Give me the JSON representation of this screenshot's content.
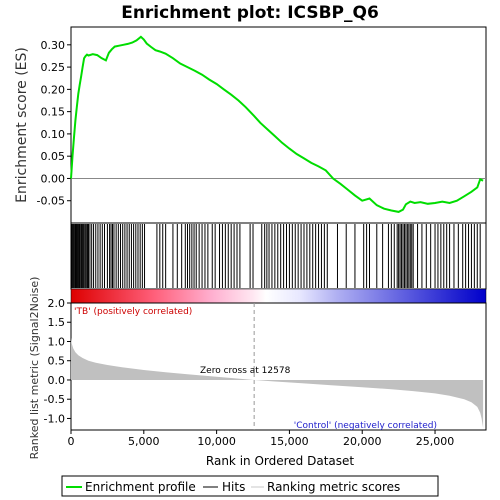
{
  "chart_data": [
    {
      "type": "line",
      "title": "Enrichment plot: ICSBP_Q6",
      "ylabel": "Enrichment score (ES)",
      "xlim": [
        0,
        28500
      ],
      "ylim": [
        -0.1,
        0.34
      ],
      "yticks": [
        "0.30",
        "0.25",
        "0.20",
        "0.15",
        "0.10",
        "0.05",
        "0.00",
        "-0.05"
      ],
      "ytick_values": [
        0.3,
        0.25,
        0.2,
        0.15,
        0.1,
        0.05,
        0.0,
        -0.05
      ],
      "series": [
        {
          "name": "Enrichment profile",
          "color": "#00dd00",
          "x": [
            0,
            100,
            200,
            300,
            400,
            500,
            600,
            700,
            800,
            900,
            1000,
            1100,
            1200,
            1500,
            1800,
            2100,
            2400,
            2600,
            2800,
            3000,
            3300,
            3600,
            3900,
            4200,
            4500,
            4800,
            5000,
            5200,
            5500,
            5800,
            6100,
            6500,
            7000,
            7500,
            8000,
            8500,
            9000,
            9500,
            10000,
            10500,
            11000,
            11500,
            12000,
            12578,
            13000,
            13500,
            14000,
            14500,
            15000,
            15500,
            16000,
            16500,
            17000,
            17500,
            18000,
            18500,
            19000,
            19500,
            20000,
            20500,
            21000,
            21500,
            22000,
            22500,
            22800,
            23000,
            23300,
            23600,
            24000,
            24500,
            25000,
            25500,
            26000,
            26500,
            27000,
            27500,
            27900,
            28100,
            28300
          ],
          "y": [
            0.0,
            0.05,
            0.09,
            0.13,
            0.16,
            0.19,
            0.21,
            0.23,
            0.25,
            0.27,
            0.275,
            0.278,
            0.276,
            0.279,
            0.277,
            0.27,
            0.265,
            0.282,
            0.29,
            0.296,
            0.298,
            0.3,
            0.302,
            0.305,
            0.31,
            0.318,
            0.312,
            0.303,
            0.295,
            0.288,
            0.285,
            0.28,
            0.27,
            0.258,
            0.25,
            0.242,
            0.233,
            0.222,
            0.212,
            0.2,
            0.188,
            0.175,
            0.16,
            0.14,
            0.125,
            0.11,
            0.095,
            0.08,
            0.067,
            0.055,
            0.045,
            0.035,
            0.027,
            0.018,
            0.0,
            -0.012,
            -0.025,
            -0.038,
            -0.05,
            -0.045,
            -0.06,
            -0.068,
            -0.072,
            -0.075,
            -0.07,
            -0.058,
            -0.052,
            -0.055,
            -0.053,
            -0.057,
            -0.055,
            -0.052,
            -0.055,
            -0.05,
            -0.04,
            -0.03,
            -0.02,
            -0.002,
            -0.005
          ]
        }
      ]
    },
    {
      "type": "area",
      "ylabel": "Ranked list metric (Signal2Noise)",
      "xlabel": "Rank in Ordered Dataset",
      "xlim": [
        0,
        28500
      ],
      "ylim": [
        -1.3,
        2.0
      ],
      "yticks": [
        "2.0",
        "1.5",
        "1.0",
        "0.5",
        "0.0",
        "-0.5",
        "-1.0"
      ],
      "ytick_values": [
        2.0,
        1.5,
        1.0,
        0.5,
        0.0,
        -0.5,
        -1.0
      ],
      "xticks": [
        "0",
        "5,000",
        "10,000",
        "15,000",
        "20,000",
        "25,000"
      ],
      "xtick_values": [
        0,
        5000,
        10000,
        15000,
        20000,
        25000
      ],
      "zero_cross": 12578,
      "x": [
        0,
        50,
        150,
        300,
        500,
        800,
        1200,
        1700,
        2500,
        3500,
        5000,
        6500,
        8000,
        9500,
        11000,
        12578,
        14000,
        16000,
        18000,
        20000,
        22000,
        23500,
        25000,
        26000,
        27000,
        27500,
        27900,
        28100,
        28200,
        28300
      ],
      "values": [
        1.1,
        0.95,
        0.82,
        0.72,
        0.64,
        0.57,
        0.5,
        0.45,
        0.39,
        0.33,
        0.26,
        0.2,
        0.15,
        0.1,
        0.05,
        0.0,
        -0.04,
        -0.09,
        -0.14,
        -0.19,
        -0.24,
        -0.29,
        -0.35,
        -0.41,
        -0.5,
        -0.58,
        -0.7,
        -0.85,
        -1.0,
        -1.25
      ]
    }
  ],
  "annotations": {
    "positive_label": "'TB' (positively correlated)",
    "negative_label": "'Control' (negatively correlated)",
    "zero_cross_label": "Zero cross at 12578"
  },
  "hits": {
    "color": "#000000",
    "positions": [
      60,
      120,
      180,
      250,
      310,
      380,
      440,
      500,
      560,
      620,
      700,
      760,
      830,
      900,
      980,
      1050,
      1130,
      1200,
      1300,
      1420,
      1550,
      1700,
      1850,
      2000,
      2150,
      2300,
      2500,
      2650,
      2750,
      2850,
      2950,
      3100,
      3250,
      3400,
      3550,
      3700,
      3850,
      4000,
      4150,
      4300,
      4450,
      4600,
      4750,
      4900,
      5050,
      5900,
      6100,
      6300,
      6500,
      7000,
      7300,
      7600,
      7850,
      8000,
      8150,
      8300,
      8450,
      8600,
      8800,
      9000,
      9200,
      9400,
      9700,
      9900,
      10200,
      10400,
      10600,
      10800,
      11000,
      11200,
      11400,
      11600,
      12300,
      12500,
      13100,
      13300,
      13450,
      13600,
      13800,
      14000,
      14200,
      14400,
      14600,
      14800,
      15000,
      15200,
      15400,
      15600,
      15800,
      16000,
      16200,
      16400,
      16600,
      16800,
      17000,
      17200,
      17400,
      17600,
      18300,
      18900,
      19500,
      20100,
      20300,
      20500,
      21000,
      21400,
      21800,
      22000,
      22200,
      22400,
      22500,
      22600,
      22700,
      22800,
      22900,
      23000,
      23100,
      23200,
      23300,
      23400,
      23500,
      23800,
      24100,
      24400,
      24700,
      25000,
      25200,
      25400,
      25600,
      25800,
      26000,
      26300,
      26600,
      26900,
      27100,
      27300,
      27500,
      27700,
      27900,
      28100
    ]
  },
  "legend": {
    "items": [
      {
        "label": "Enrichment profile",
        "color": "#00dd00"
      },
      {
        "label": "Hits",
        "color": "#000000"
      },
      {
        "label": "Ranking metric scores",
        "color": "#c8c8c8"
      }
    ]
  },
  "colors": {
    "positive": "#dd0000",
    "negative": "#0000dd",
    "metric_fill": "#c0c0c0"
  }
}
